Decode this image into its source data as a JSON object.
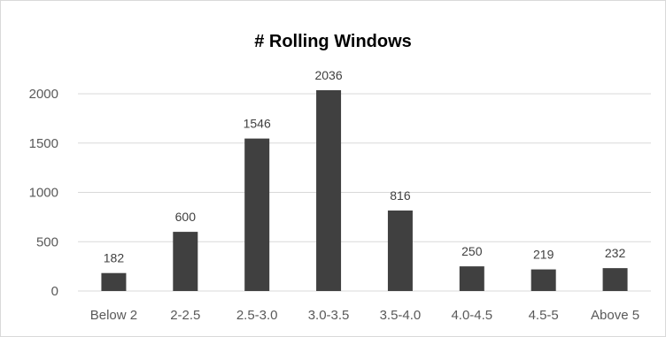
{
  "chart_data": {
    "type": "bar",
    "title": "# Rolling Windows",
    "categories": [
      "Below 2",
      "2-2.5",
      "2.5-3.0",
      "3.0-3.5",
      "3.5-4.0",
      "4.0-4.5",
      "4.5-5",
      "Above 5"
    ],
    "values": [
      182,
      600,
      1546,
      2036,
      816,
      250,
      219,
      232
    ],
    "data_labels": [
      "182",
      "600",
      "1546",
      "2036",
      "816",
      "250",
      "219",
      "232"
    ],
    "yticks": [
      "0",
      "500",
      "1000",
      "1500",
      "2000"
    ],
    "ylim": [
      0,
      2000
    ],
    "xlabel": "",
    "ylabel": "",
    "grid": true,
    "legend": "none",
    "colors": {
      "bar": "#404040",
      "grid": "#d9d9d9",
      "tick": "#595959"
    }
  }
}
